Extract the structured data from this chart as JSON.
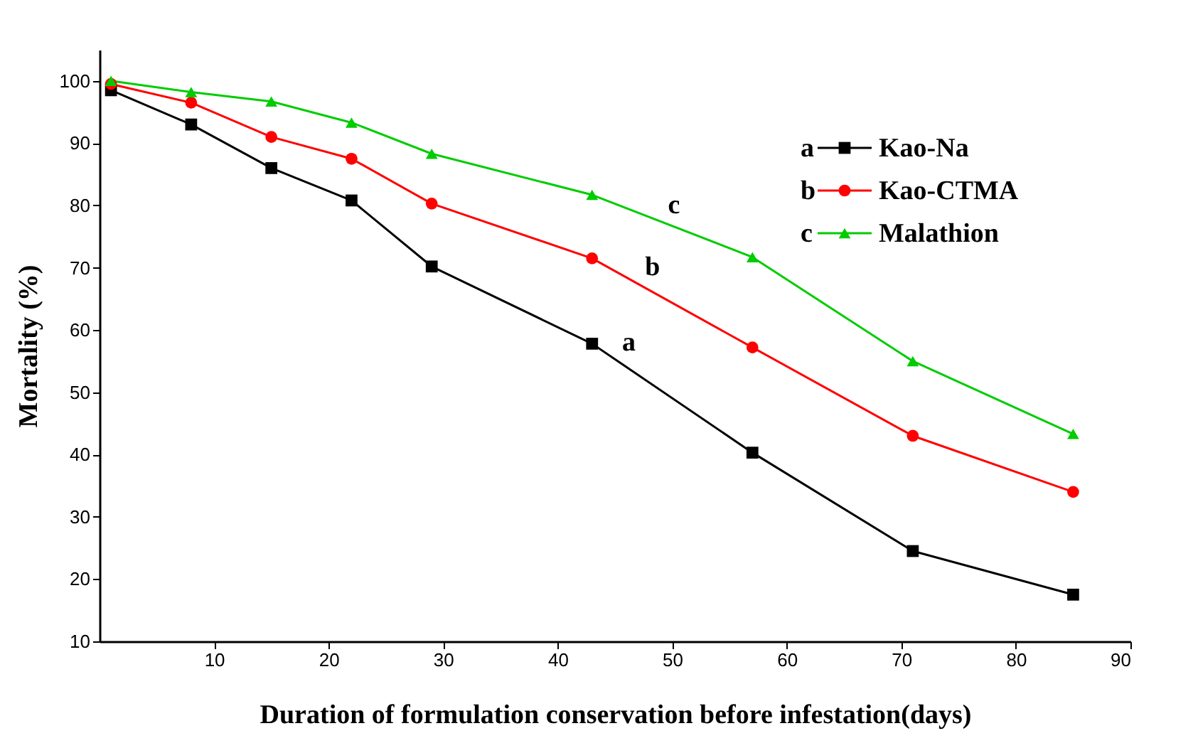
{
  "chart_data": {
    "type": "line",
    "xlabel": "Duration of formulation conservation before infestation(days)",
    "ylabel": "Mortality (%)",
    "xlim": [
      0,
      90
    ],
    "ylim": [
      10,
      105
    ],
    "xticks": [
      10,
      20,
      30,
      40,
      50,
      60,
      70,
      80,
      90
    ],
    "yticks": [
      10,
      20,
      30,
      40,
      50,
      60,
      70,
      80,
      90,
      100
    ],
    "grid": false,
    "legend": "top right",
    "x": [
      1,
      8,
      15,
      22,
      29,
      43,
      57,
      71,
      85
    ],
    "series": [
      {
        "name": "Kao-Na",
        "color": "#000000",
        "marker": "square",
        "values": [
          98.5,
          93,
          86,
          80.8,
          70.2,
          57.8,
          40.3,
          24.5,
          17.5
        ]
      },
      {
        "name": "Kao-CTMA",
        "color": "#ff0000",
        "marker": "circle",
        "values": [
          99.5,
          96.5,
          91,
          87.5,
          80.3,
          71.5,
          57.2,
          43,
          34
        ]
      },
      {
        "name": "Malathion",
        "color": "#00cc00",
        "marker": "triangle",
        "values": [
          100,
          98.2,
          96.7,
          93.3,
          88.3,
          81.7,
          71.7,
          55,
          43.3
        ]
      }
    ],
    "annotations": [
      {
        "text": "a",
        "x": 45,
        "y": 55.3
      },
      {
        "text": "b",
        "x": 47,
        "y": 67.4
      },
      {
        "text": "c",
        "x": 49,
        "y": 77.4
      }
    ]
  }
}
